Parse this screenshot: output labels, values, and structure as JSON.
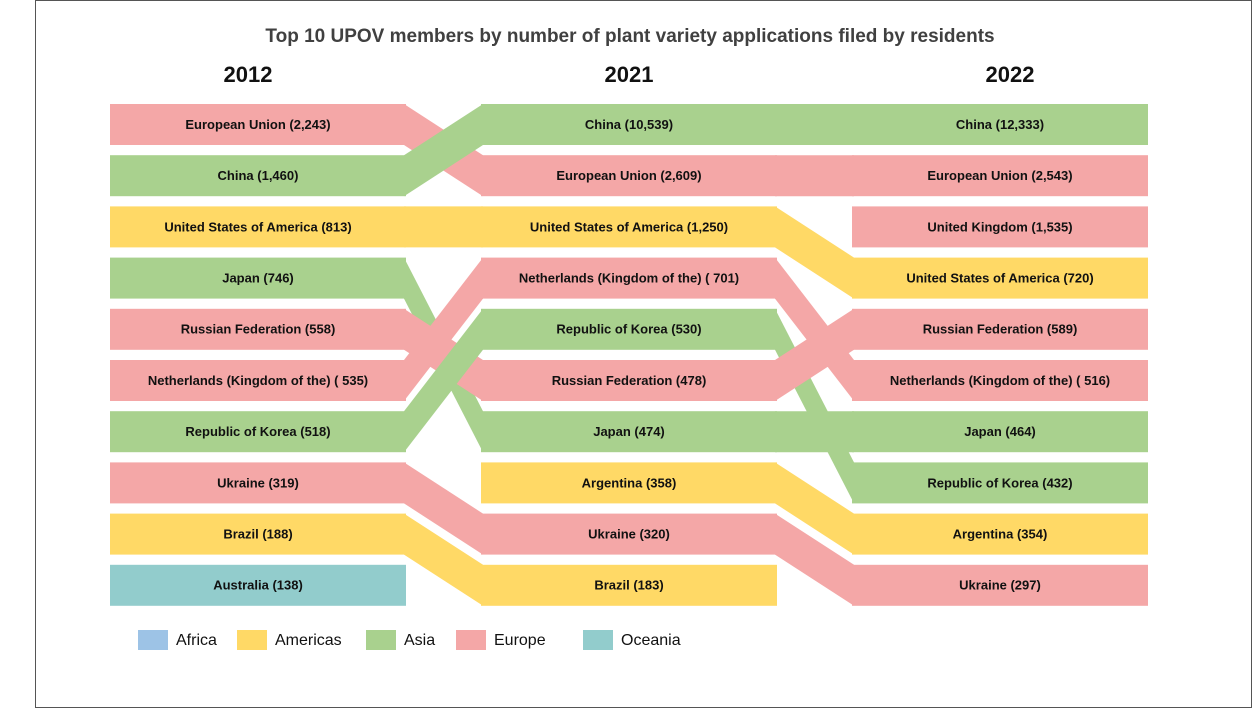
{
  "chart_data": {
    "type": "bump",
    "title": "Top 10 UPOV members by number of plant variety applications filed by residents",
    "legend": [
      {
        "name": "Africa",
        "color": "#9dc3e6"
      },
      {
        "name": "Americas",
        "color": "#ffd966"
      },
      {
        "name": "Asia",
        "color": "#a9d18e"
      },
      {
        "name": "Europe",
        "color": "#f4a7a7"
      },
      {
        "name": "Oceania",
        "color": "#92cccc"
      }
    ],
    "columns": [
      {
        "year": "2012",
        "entries": [
          {
            "name": "European Union",
            "region": "Europe",
            "value": 2243,
            "value_label": "European Union (2,243)"
          },
          {
            "name": "China",
            "region": "Asia",
            "value": 1460,
            "value_label": "China (1,460)"
          },
          {
            "name": "United States of America",
            "region": "Americas",
            "value": 813,
            "value_label": "United States of America (813)"
          },
          {
            "name": "Japan",
            "region": "Asia",
            "value": 746,
            "value_label": "Japan (746)"
          },
          {
            "name": "Russian Federation",
            "region": "Europe",
            "value": 558,
            "value_label": "Russian Federation (558)"
          },
          {
            "name": "Netherlands (Kingdom of the)",
            "region": "Europe",
            "value": 535,
            "value_label": "Netherlands (Kingdom of the) ( 535)"
          },
          {
            "name": "Republic of Korea",
            "region": "Asia",
            "value": 518,
            "value_label": "Republic of Korea (518)"
          },
          {
            "name": "Ukraine",
            "region": "Europe",
            "value": 319,
            "value_label": "Ukraine (319)"
          },
          {
            "name": "Brazil",
            "region": "Americas",
            "value": 188,
            "value_label": "Brazil (188)"
          },
          {
            "name": "Australia",
            "region": "Oceania",
            "value": 138,
            "value_label": "Australia (138)"
          }
        ]
      },
      {
        "year": "2021",
        "entries": [
          {
            "name": "China",
            "region": "Asia",
            "value": 10539,
            "value_label": "China (10,539)"
          },
          {
            "name": "European Union",
            "region": "Europe",
            "value": 2609,
            "value_label": "European Union (2,609)"
          },
          {
            "name": "United States of America",
            "region": "Americas",
            "value": 1250,
            "value_label": "United States of America (1,250)"
          },
          {
            "name": "Netherlands (Kingdom of the)",
            "region": "Europe",
            "value": 701,
            "value_label": "Netherlands (Kingdom of the) ( 701)"
          },
          {
            "name": "Republic of Korea",
            "region": "Asia",
            "value": 530,
            "value_label": "Republic of Korea (530)"
          },
          {
            "name": "Russian Federation",
            "region": "Europe",
            "value": 478,
            "value_label": "Russian Federation (478)"
          },
          {
            "name": "Japan",
            "region": "Asia",
            "value": 474,
            "value_label": "Japan (474)"
          },
          {
            "name": "Argentina",
            "region": "Americas",
            "value": 358,
            "value_label": "Argentina (358)"
          },
          {
            "name": "Ukraine",
            "region": "Europe",
            "value": 320,
            "value_label": "Ukraine (320)"
          },
          {
            "name": "Brazil",
            "region": "Americas",
            "value": 183,
            "value_label": "Brazil (183)"
          }
        ]
      },
      {
        "year": "2022",
        "entries": [
          {
            "name": "China",
            "region": "Asia",
            "value": 12333,
            "value_label": "China (12,333)"
          },
          {
            "name": "European Union",
            "region": "Europe",
            "value": 2543,
            "value_label": "European Union (2,543)"
          },
          {
            "name": "United Kingdom",
            "region": "Europe",
            "value": 1535,
            "value_label": "United Kingdom (1,535)"
          },
          {
            "name": "United States of America",
            "region": "Americas",
            "value": 720,
            "value_label": "United States of America (720)"
          },
          {
            "name": "Russian Federation",
            "region": "Europe",
            "value": 589,
            "value_label": "Russian Federation (589)"
          },
          {
            "name": "Netherlands (Kingdom of the)",
            "region": "Europe",
            "value": 516,
            "value_label": "Netherlands (Kingdom of the) ( 516)"
          },
          {
            "name": "Japan",
            "region": "Asia",
            "value": 464,
            "value_label": "Japan (464)"
          },
          {
            "name": "Republic of Korea",
            "region": "Asia",
            "value": 432,
            "value_label": "Republic of Korea (432)"
          },
          {
            "name": "Argentina",
            "region": "Americas",
            "value": 354,
            "value_label": "Argentina (354)"
          },
          {
            "name": "Ukraine",
            "region": "Europe",
            "value": 297,
            "value_label": "Ukraine (297)"
          }
        ]
      }
    ]
  }
}
